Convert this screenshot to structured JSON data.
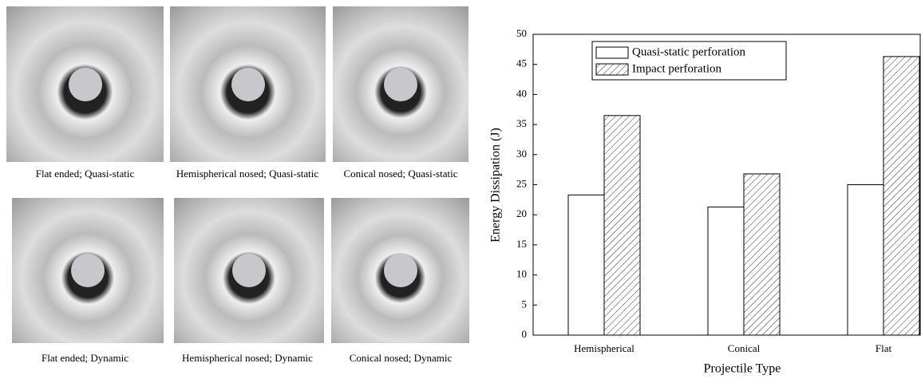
{
  "photos": {
    "captions": [
      "Flat ended; Quasi-static",
      "Hemispherical nosed; Quasi-static",
      "Conical nosed; Quasi-static",
      "Flat ended; Dynamic",
      "Hemispherical nosed; Dynamic",
      "Conical nosed; Dynamic"
    ]
  },
  "chart_data": {
    "type": "bar",
    "categories": [
      "Hemispherical",
      "Conical",
      "Flat"
    ],
    "series": [
      {
        "name": "Quasi-static perforation",
        "color": "#ffffff",
        "hatch": false,
        "values": [
          23.3,
          21.3,
          25.0
        ]
      },
      {
        "name": "Impact perforation",
        "color": "#ffffff",
        "hatch": true,
        "values": [
          36.5,
          26.8,
          46.3
        ]
      }
    ],
    "ylim": [
      0,
      50
    ],
    "yticks": [
      0,
      5,
      10,
      15,
      20,
      25,
      30,
      35,
      40,
      45,
      50
    ],
    "xlabel": "Projectile Type",
    "ylabel": "Energy Dissipation (J)",
    "legend": "upper-left"
  }
}
